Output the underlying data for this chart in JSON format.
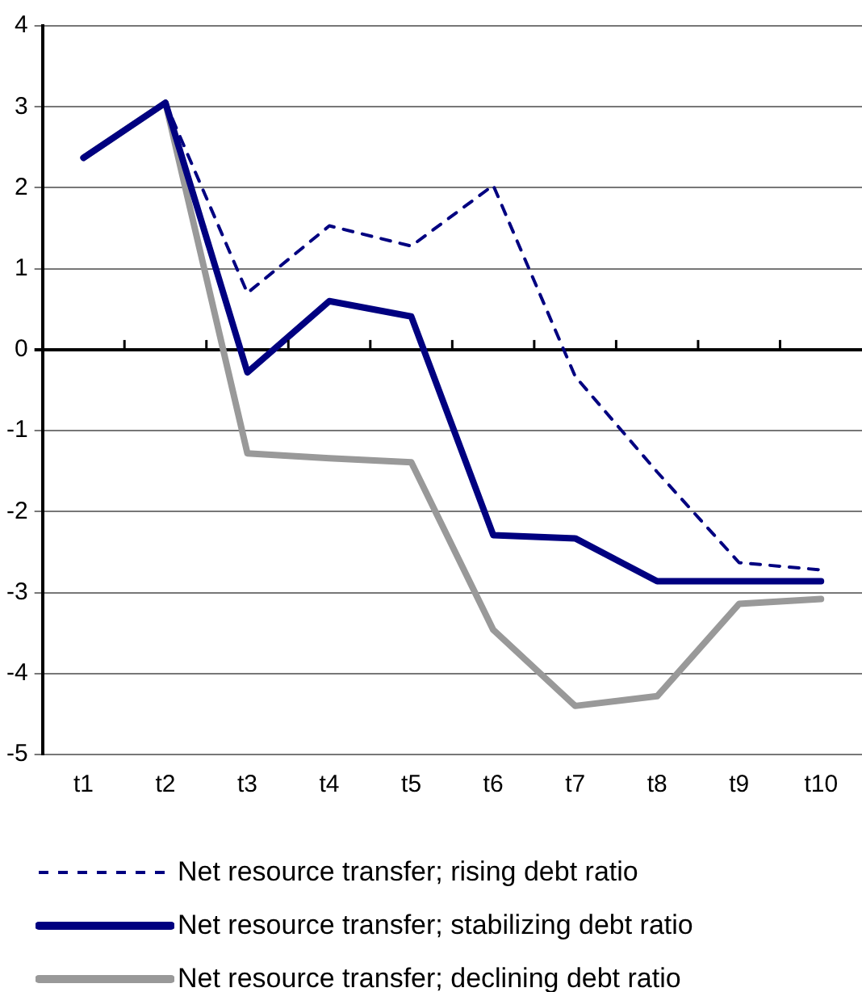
{
  "chart_data": {
    "type": "line",
    "categories": [
      "t1",
      "t2",
      "t3",
      "t4",
      "t5",
      "t6",
      "t7",
      "t8",
      "t9",
      "t10"
    ],
    "series": [
      {
        "name": "Net resource transfer; rising debt ratio",
        "color": "#000080",
        "line_style": "dashed",
        "values": [
          2.37,
          3.05,
          0.7,
          1.53,
          1.28,
          2.03,
          -0.33,
          -1.51,
          -2.63,
          -2.72
        ]
      },
      {
        "name": "Net resource transfer; stabilizing debt ratio",
        "color": "#000080",
        "line_style": "solid",
        "values": [
          2.37,
          3.05,
          -0.28,
          0.6,
          0.41,
          -2.29,
          -2.33,
          -2.86,
          -2.86,
          -2.86
        ]
      },
      {
        "name": "Net resource transfer; declining debt ratio",
        "color": "#999999",
        "line_style": "solid",
        "values": [
          2.37,
          3.05,
          -1.28,
          -1.34,
          -1.39,
          -3.46,
          -4.4,
          -4.28,
          -3.14,
          -3.08
        ]
      }
    ],
    "ylim": [
      -5,
      4
    ],
    "yticks": [
      -5,
      -4,
      -3,
      -2,
      -1,
      0,
      1,
      2,
      3,
      4
    ],
    "grid": "y",
    "legend": "bottom",
    "marker": "none"
  }
}
